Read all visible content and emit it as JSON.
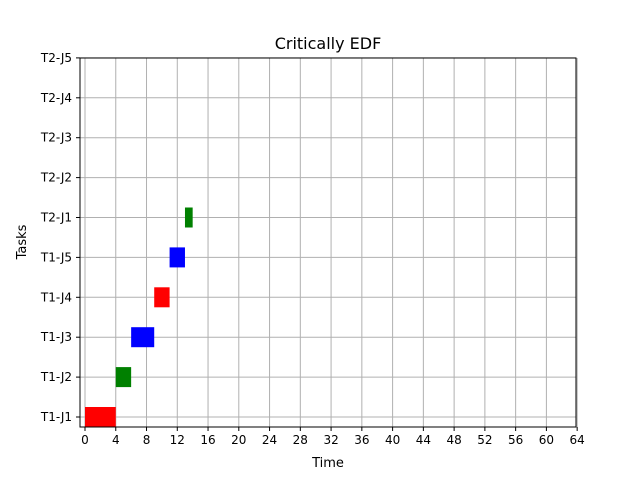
{
  "chart_data": {
    "type": "gantt",
    "title": "Critically EDF",
    "xlabel": "Time",
    "ylabel": "Tasks",
    "xlim": [
      -0.5,
      64
    ],
    "x_ticks": [
      0,
      4,
      8,
      12,
      16,
      20,
      24,
      28,
      32,
      36,
      40,
      44,
      48,
      52,
      56,
      60,
      64
    ],
    "categories": [
      "T1-J1",
      "T1-J2",
      "T1-J3",
      "T1-J4",
      "T1-J5",
      "T2-J1",
      "T2-J2",
      "T2-J3",
      "T2-J4",
      "T2-J5"
    ],
    "grid": true,
    "legend": "none",
    "bars": [
      {
        "task": "T1-J1",
        "start": 0,
        "end": 4,
        "color": "#ff0000"
      },
      {
        "task": "T1-J2",
        "start": 4,
        "end": 6,
        "color": "#008000"
      },
      {
        "task": "T1-J3",
        "start": 6,
        "end": 9,
        "color": "#0000ff"
      },
      {
        "task": "T1-J4",
        "start": 9,
        "end": 11,
        "color": "#ff0000"
      },
      {
        "task": "T1-J5",
        "start": 11,
        "end": 13,
        "color": "#0000ff"
      },
      {
        "task": "T2-J1",
        "start": 13,
        "end": 14,
        "color": "#008000"
      }
    ]
  }
}
